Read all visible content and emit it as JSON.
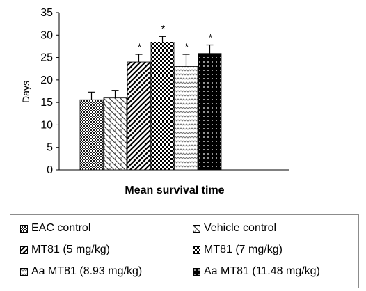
{
  "chart_data": {
    "type": "bar",
    "title": "",
    "xlabel": "Mean survival time",
    "ylabel": "Days",
    "ylim": [
      0,
      35
    ],
    "yticks": [
      0,
      5,
      10,
      15,
      20,
      25,
      30,
      35
    ],
    "grid": false,
    "legend_position": "bottom",
    "series": [
      {
        "name": "EAC control",
        "value": 15.6,
        "error": 1.7,
        "significant": false,
        "pattern": "dots"
      },
      {
        "name": "Vehicle control",
        "value": 16.0,
        "error": 1.7,
        "significant": false,
        "pattern": "vehicle"
      },
      {
        "name": "MT81 (5 mg/kg)",
        "value": 24.0,
        "error": 1.7,
        "significant": true,
        "pattern": "diag"
      },
      {
        "name": "MT81 (7 mg/kg)",
        "value": 28.4,
        "error": 1.3,
        "significant": true,
        "pattern": "checker"
      },
      {
        "name": "Aa MT81 (8.93 mg/kg)",
        "value": 23.0,
        "error": 2.7,
        "significant": true,
        "pattern": "zigzag"
      },
      {
        "name": "Aa MT81 (11.48 mg/kg)",
        "value": 25.9,
        "error": 1.9,
        "significant": true,
        "pattern": "darkdots"
      }
    ],
    "significance_marker": "*"
  }
}
